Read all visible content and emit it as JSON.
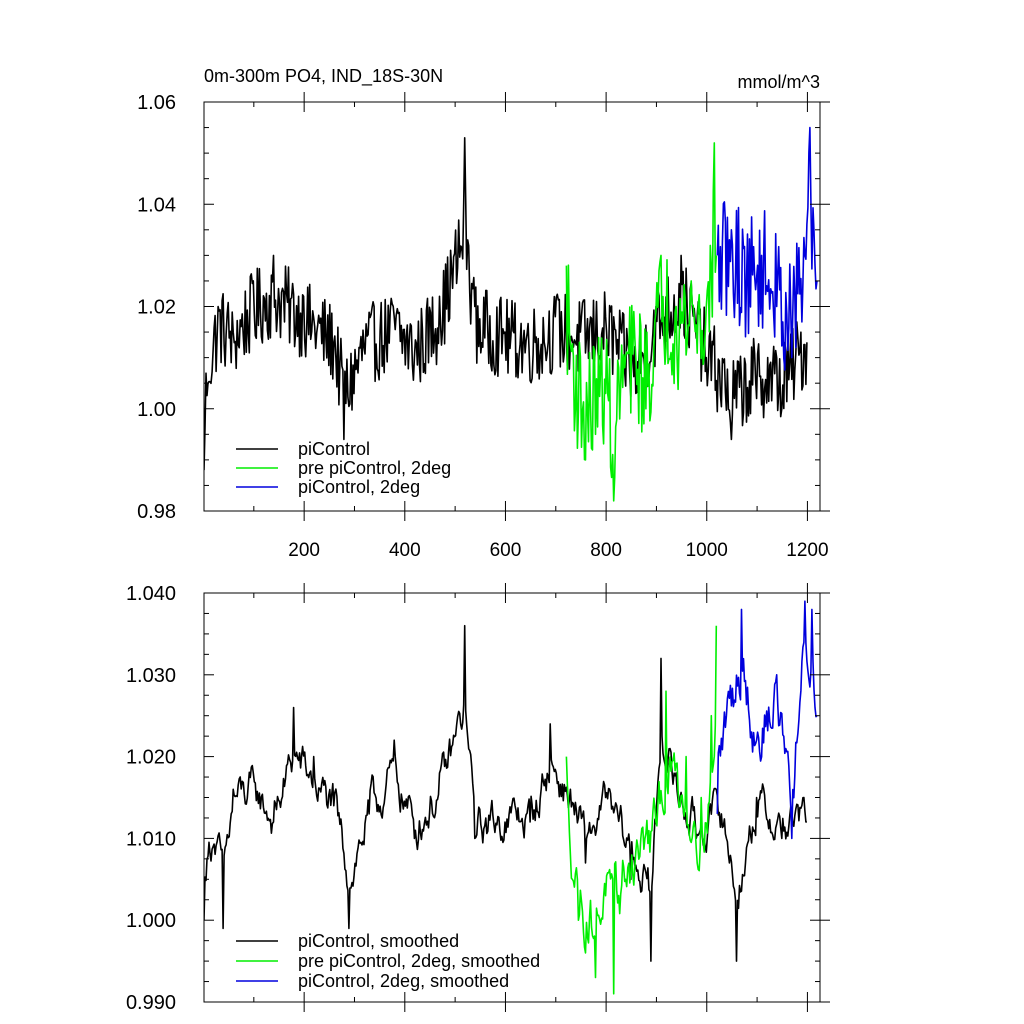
{
  "chart_data": [
    {
      "type": "line",
      "title": "0m-300m PO4, IND_18S-30N",
      "units": "mmol/m^3",
      "xlim": [
        1,
        1225
      ],
      "ylim": [
        0.98,
        1.06
      ],
      "xticks": [
        200,
        400,
        600,
        800,
        1000,
        1200
      ],
      "xtick_labels": [
        "200",
        "400",
        "600",
        "800",
        "1000",
        "1200"
      ],
      "yticks": [
        0.98,
        1.0,
        1.02,
        1.04,
        1.06
      ],
      "ytick_labels": [
        "0.98",
        "1.00",
        "1.02",
        "1.04",
        "1.06"
      ],
      "grid": false,
      "legend": "bottom-left",
      "series": [
        {
          "name": "piControl",
          "color": "#000000",
          "x_start": 1,
          "x_end": 1200,
          "mean": 1.012,
          "amp": 0.008,
          "anchors": [
            [
              1,
              0.988
            ],
            [
              10,
              1.005
            ],
            [
              30,
              1.02
            ],
            [
              60,
              1.015
            ],
            [
              100,
              1.025
            ],
            [
              140,
              1.03
            ],
            [
              200,
              1.022
            ],
            [
              260,
              1.013
            ],
            [
              280,
              0.994
            ],
            [
              320,
              1.012
            ],
            [
              380,
              1.018
            ],
            [
              420,
              1.01
            ],
            [
              470,
              1.022
            ],
            [
              520,
              1.053
            ],
            [
              540,
              1.02
            ],
            [
              600,
              1.015
            ],
            [
              660,
              1.013
            ],
            [
              700,
              1.018
            ],
            [
              750,
              1.015
            ],
            [
              800,
              1.018
            ],
            [
              860,
              1.003
            ],
            [
              900,
              1.02
            ],
            [
              950,
              1.03
            ],
            [
              1000,
              1.01
            ],
            [
              1050,
              0.994
            ],
            [
              1100,
              1.002
            ],
            [
              1150,
              1.0
            ],
            [
              1200,
              1.013
            ]
          ]
        },
        {
          "name": "pre piControl, 2deg",
          "color": "#00ee00",
          "x_start": 721,
          "x_end": 1020,
          "mean": 1.01,
          "amp": 0.012,
          "anchors": [
            [
              721,
              1.028
            ],
            [
              740,
              1.0
            ],
            [
              760,
              0.99
            ],
            [
              780,
              0.995
            ],
            [
              800,
              1.003
            ],
            [
              815,
              0.982
            ],
            [
              830,
              1.005
            ],
            [
              860,
              1.01
            ],
            [
              880,
              1.0
            ],
            [
              910,
              1.03
            ],
            [
              940,
              1.02
            ],
            [
              970,
              1.025
            ],
            [
              1000,
              1.02
            ],
            [
              1015,
              1.052
            ],
            [
              1020,
              1.03
            ]
          ]
        },
        {
          "name": "piControl, 2deg",
          "color": "#0000dd",
          "x_start": 1021,
          "x_end": 1220,
          "mean": 1.025,
          "amp": 0.012,
          "anchors": [
            [
              1021,
              1.03
            ],
            [
              1050,
              1.035
            ],
            [
              1080,
              1.025
            ],
            [
              1110,
              1.03
            ],
            [
              1140,
              1.02
            ],
            [
              1170,
              1.01
            ],
            [
              1195,
              1.03
            ],
            [
              1205,
              1.055
            ],
            [
              1220,
              1.025
            ]
          ]
        }
      ]
    },
    {
      "type": "line",
      "xlim": [
        1,
        1225
      ],
      "ylim": [
        0.99,
        1.04
      ],
      "xticks": [
        200,
        400,
        600,
        800,
        1000,
        1200
      ],
      "yticks": [
        0.99,
        1.0,
        1.01,
        1.02,
        1.03,
        1.04
      ],
      "ytick_labels": [
        "0.990",
        "1.000",
        "1.010",
        "1.020",
        "1.030",
        "1.040"
      ],
      "grid": false,
      "legend": "bottom-left",
      "series": [
        {
          "name": "piControl, smoothed",
          "color": "#000000",
          "x_start": 1,
          "x_end": 1200,
          "mean": 1.013,
          "amp": 0.004,
          "anchors": [
            [
              1,
              1.0
            ],
            [
              20,
              1.009
            ],
            [
              40,
              0.999
            ],
            [
              60,
              1.016
            ],
            [
              100,
              1.018
            ],
            [
              140,
              1.012
            ],
            [
              180,
              1.026
            ],
            [
              220,
              1.02
            ],
            [
              260,
              1.014
            ],
            [
              290,
              0.999
            ],
            [
              330,
              1.013
            ],
            [
              380,
              1.022
            ],
            [
              420,
              1.01
            ],
            [
              470,
              1.018
            ],
            [
              520,
              1.036
            ],
            [
              540,
              1.01
            ],
            [
              600,
              1.012
            ],
            [
              650,
              1.012
            ],
            [
              690,
              1.024
            ],
            [
              730,
              1.016
            ],
            [
              760,
              1.007
            ],
            [
              800,
              1.015
            ],
            [
              850,
              1.005
            ],
            [
              890,
              0.995
            ],
            [
              910,
              1.032
            ],
            [
              940,
              1.018
            ],
            [
              980,
              1.01
            ],
            [
              1030,
              1.013
            ],
            [
              1060,
              0.995
            ],
            [
              1100,
              1.015
            ],
            [
              1150,
              1.01
            ],
            [
              1200,
              1.012
            ]
          ]
        },
        {
          "name": "pre piControl, 2deg, smoothed",
          "color": "#00ee00",
          "x_start": 721,
          "x_end": 1020,
          "mean": 1.008,
          "amp": 0.006,
          "anchors": [
            [
              721,
              1.02
            ],
            [
              745,
              1.0
            ],
            [
              760,
              0.996
            ],
            [
              780,
              0.993
            ],
            [
              800,
              1.003
            ],
            [
              815,
              0.991
            ],
            [
              840,
              1.005
            ],
            [
              870,
              1.01
            ],
            [
              900,
              1.012
            ],
            [
              920,
              1.028
            ],
            [
              960,
              1.02
            ],
            [
              990,
              1.015
            ],
            [
              1010,
              1.025
            ],
            [
              1020,
              1.036
            ]
          ]
        },
        {
          "name": "piControl, 2deg, smoothed",
          "color": "#0000dd",
          "x_start": 1021,
          "x_end": 1220,
          "mean": 1.024,
          "amp": 0.006,
          "anchors": [
            [
              1021,
              1.013
            ],
            [
              1040,
              1.025
            ],
            [
              1070,
              1.038
            ],
            [
              1100,
              1.022
            ],
            [
              1140,
              1.03
            ],
            [
              1170,
              1.01
            ],
            [
              1195,
              1.039
            ],
            [
              1210,
              1.038
            ],
            [
              1220,
              1.025
            ]
          ]
        }
      ]
    }
  ]
}
